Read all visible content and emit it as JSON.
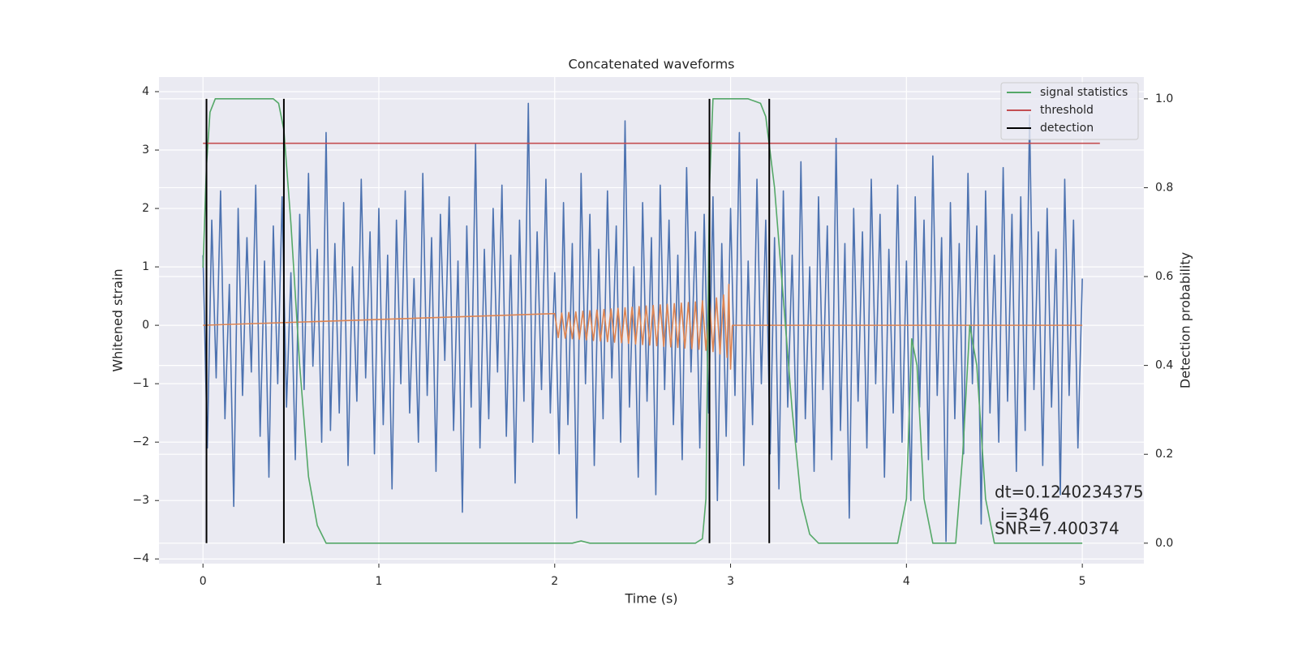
{
  "chart_data": {
    "type": "line",
    "title": "Concatenated waveforms",
    "xlabel": "Time (s)",
    "ylabel": "Whitened strain",
    "y2label": "Detection probability",
    "xlim": [
      -0.25,
      5.35
    ],
    "ylim": [
      -4.08,
      4.25
    ],
    "y2lim": [
      -0.046,
      1.049
    ],
    "xticks": [
      0,
      1,
      2,
      3,
      4,
      5
    ],
    "yticks": [
      {
        "value": -4,
        "label": "−4"
      },
      {
        "value": -3,
        "label": "−3"
      },
      {
        "value": -2,
        "label": "−2"
      },
      {
        "value": -1,
        "label": "−1"
      },
      0,
      1,
      2,
      3,
      4
    ],
    "y2ticks": [
      {
        "value": 0,
        "label": "0.0"
      },
      0.2,
      0.4,
      0.6,
      0.8,
      {
        "value": 1,
        "label": "1.0"
      }
    ],
    "grid": true,
    "legend": "upper right",
    "annotations": [
      "dt=0.1240234375",
      "i=346",
      "SNR=7.400374"
    ],
    "series": [
      {
        "color": "#4c72b0",
        "x": [
          0,
          0.025,
          0.05,
          0.075,
          0.1,
          0.125,
          0.15,
          0.175,
          0.2,
          0.225,
          0.25,
          0.275,
          0.3,
          0.325,
          0.35,
          0.375,
          0.4,
          0.425,
          0.45,
          0.475,
          0.5,
          0.525,
          0.55,
          0.575,
          0.6,
          0.625,
          0.65,
          0.675,
          0.7,
          0.725,
          0.75,
          0.775,
          0.8,
          0.825,
          0.85,
          0.875,
          0.9,
          0.925,
          0.95,
          0.975,
          1,
          1.025,
          1.05,
          1.075,
          1.1,
          1.125,
          1.15,
          1.175,
          1.2,
          1.225,
          1.25,
          1.275,
          1.3,
          1.325,
          1.35,
          1.375,
          1.4,
          1.425,
          1.45,
          1.475,
          1.5,
          1.525,
          1.55,
          1.575,
          1.6,
          1.625,
          1.65,
          1.675,
          1.7,
          1.725,
          1.75,
          1.775,
          1.8,
          1.825,
          1.85,
          1.875,
          1.9,
          1.925,
          1.95,
          1.975,
          2,
          2.025,
          2.05,
          2.075,
          2.1,
          2.125,
          2.15,
          2.175,
          2.2,
          2.225,
          2.25,
          2.275,
          2.3,
          2.325,
          2.35,
          2.375,
          2.4,
          2.425,
          2.45,
          2.475,
          2.5,
          2.525,
          2.55,
          2.575,
          2.6,
          2.625,
          2.65,
          2.675,
          2.7,
          2.725,
          2.75,
          2.775,
          2.8,
          2.825,
          2.85,
          2.875,
          2.9,
          2.925,
          2.95,
          2.975,
          3,
          3.025,
          3.05,
          3.075,
          3.1,
          3.125,
          3.15,
          3.175,
          3.2,
          3.225,
          3.25,
          3.275,
          3.3,
          3.325,
          3.35,
          3.375,
          3.4,
          3.425,
          3.45,
          3.475,
          3.5,
          3.525,
          3.55,
          3.575,
          3.6,
          3.625,
          3.65,
          3.675,
          3.7,
          3.725,
          3.75,
          3.775,
          3.8,
          3.825,
          3.85,
          3.875,
          3.9,
          3.925,
          3.95,
          3.975,
          4,
          4.025,
          4.05,
          4.075,
          4.1,
          4.125,
          4.15,
          4.175,
          4.2,
          4.225,
          4.25,
          4.275,
          4.3,
          4.325,
          4.35,
          4.375,
          4.4,
          4.425,
          4.45,
          4.475,
          4.5,
          4.525,
          4.55,
          4.575,
          4.6,
          4.625,
          4.65,
          4.675,
          4.7,
          4.725,
          4.75,
          4.775,
          4.8,
          4.825,
          4.85,
          4.875,
          4.9,
          4.925,
          4.95,
          4.975,
          5
        ],
        "values": [
          1.2,
          -2.1,
          1.8,
          -0.9,
          2.3,
          -1.6,
          0.7,
          -3.1,
          2.0,
          -1.2,
          1.5,
          -0.8,
          2.4,
          -1.9,
          1.1,
          -2.6,
          1.7,
          -1.0,
          2.2,
          -1.4,
          0.9,
          -2.3,
          1.9,
          -1.1,
          2.6,
          -0.7,
          1.3,
          -2.0,
          3.3,
          -1.8,
          1.4,
          -1.5,
          2.1,
          -2.4,
          1.0,
          -1.3,
          2.5,
          -0.9,
          1.6,
          -2.2,
          2.0,
          -1.7,
          1.2,
          -2.8,
          1.8,
          -1.0,
          2.3,
          -1.5,
          0.8,
          -2.0,
          2.6,
          -1.2,
          1.5,
          -2.5,
          1.9,
          -0.6,
          2.2,
          -1.8,
          1.1,
          -3.2,
          1.7,
          -1.4,
          3.1,
          -2.1,
          1.3,
          -1.6,
          2.0,
          -0.8,
          2.4,
          -1.9,
          1.2,
          -2.7,
          1.8,
          -1.3,
          3.8,
          -2.0,
          1.6,
          -1.1,
          2.5,
          -1.5,
          0.9,
          -2.2,
          2.1,
          -1.7,
          1.4,
          -3.3,
          2.6,
          -1.0,
          1.9,
          -2.4,
          1.3,
          -1.6,
          2.3,
          -0.9,
          1.7,
          -2.0,
          3.5,
          -1.4,
          1.0,
          -2.6,
          2.1,
          -1.3,
          1.5,
          -2.9,
          2.4,
          -1.1,
          1.8,
          -1.7,
          1.2,
          -2.3,
          2.7,
          -0.8,
          1.6,
          -2.1,
          1.9,
          -1.5,
          2.2,
          -3.0,
          1.4,
          -1.9,
          2.0,
          -1.2,
          3.3,
          -2.4,
          1.1,
          -1.7,
          2.5,
          -1.0,
          1.8,
          -2.2,
          1.5,
          -2.8,
          2.3,
          -1.4,
          1.2,
          -2.0,
          2.8,
          -1.6,
          1.0,
          -2.5,
          2.2,
          -1.1,
          1.7,
          -2.3,
          3.2,
          -1.8,
          1.4,
          -3.3,
          2.0,
          -1.3,
          1.6,
          -2.1,
          2.5,
          -1.0,
          1.9,
          -2.6,
          1.3,
          -1.5,
          2.4,
          -2.0,
          1.1,
          -3.0,
          2.2,
          -1.4,
          1.8,
          -2.3,
          2.9,
          -1.2,
          1.5,
          -3.7,
          2.1,
          -1.6,
          1.4,
          -2.2,
          2.6,
          -1.0,
          1.7,
          -3.4,
          2.3,
          -1.5,
          1.2,
          -2.0,
          2.7,
          -1.3,
          1.9,
          -2.5,
          2.2,
          -1.8,
          3.6,
          -1.1,
          1.6,
          -2.4,
          2.0,
          -1.4,
          1.3,
          -2.9,
          2.5,
          -1.2,
          1.8,
          -2.1,
          0.8
        ]
      },
      {
        "color": "#dd8452",
        "x": [
          0,
          2.0,
          2.02,
          2.04,
          2.06,
          2.08,
          2.1,
          2.12,
          2.14,
          2.16,
          2.18,
          2.2,
          2.22,
          2.24,
          2.26,
          2.28,
          2.3,
          2.32,
          2.34,
          2.36,
          2.38,
          2.4,
          2.42,
          2.44,
          2.46,
          2.48,
          2.5,
          2.52,
          2.54,
          2.56,
          2.58,
          2.6,
          2.62,
          2.64,
          2.66,
          2.68,
          2.7,
          2.72,
          2.74,
          2.76,
          2.78,
          2.8,
          2.82,
          2.84,
          2.86,
          2.88,
          2.9,
          2.92,
          2.94,
          2.96,
          2.98,
          2.99,
          3.0,
          3.01,
          5
        ],
        "values": [
          0,
          0.2,
          -0.21,
          0.21,
          -0.22,
          0.22,
          -0.23,
          0.23,
          -0.24,
          0.24,
          -0.25,
          0.25,
          -0.26,
          0.26,
          -0.27,
          0.27,
          -0.28,
          0.28,
          -0.29,
          0.29,
          -0.3,
          0.3,
          -0.31,
          0.31,
          -0.32,
          0.32,
          -0.33,
          0.33,
          -0.34,
          0.34,
          -0.35,
          0.35,
          -0.36,
          0.36,
          -0.37,
          0.37,
          -0.38,
          0.38,
          -0.39,
          0.39,
          -0.4,
          0.4,
          -0.41,
          0.42,
          -0.43,
          0.44,
          -0.45,
          0.47,
          -0.49,
          0.52,
          -0.55,
          0.7,
          -0.75,
          0,
          0
        ]
      },
      {
        "name": "signal statistics",
        "color": "#55a868",
        "axis": "y2",
        "x": [
          0,
          0.02,
          0.04,
          0.07,
          0.1,
          0.4,
          0.43,
          0.46,
          0.5,
          0.55,
          0.6,
          0.65,
          0.7,
          1.5,
          2.1,
          2.15,
          2.2,
          2.8,
          2.84,
          2.86,
          2.88,
          2.9,
          3.1,
          3.17,
          3.2,
          3.25,
          3.3,
          3.35,
          3.4,
          3.45,
          3.5,
          3.95,
          4.0,
          4.03,
          4.06,
          4.1,
          4.15,
          4.28,
          4.32,
          4.36,
          4.4,
          4.45,
          4.5,
          5.0
        ],
        "values": [
          0.62,
          0.85,
          0.97,
          1.0,
          1.0,
          1.0,
          0.99,
          0.93,
          0.72,
          0.4,
          0.15,
          0.04,
          0.0,
          0.0,
          0.0,
          0.005,
          0.0,
          0.0,
          0.01,
          0.1,
          0.8,
          1.0,
          1.0,
          0.99,
          0.96,
          0.8,
          0.55,
          0.3,
          0.1,
          0.02,
          0.0,
          0.0,
          0.1,
          0.46,
          0.4,
          0.1,
          0.0,
          0.0,
          0.2,
          0.49,
          0.4,
          0.1,
          0.0,
          0.0
        ]
      },
      {
        "name": "threshold",
        "color": "#c44e52",
        "axis": "y2",
        "x": [
          0,
          5.1
        ],
        "values": [
          0.9,
          0.9
        ]
      },
      {
        "name": "detection",
        "color": "#000000",
        "axis": "y2",
        "kind": "vline",
        "x": [
          0.02,
          0.46,
          2.88,
          3.22
        ],
        "ymin": 0,
        "ymax": 1
      }
    ]
  }
}
